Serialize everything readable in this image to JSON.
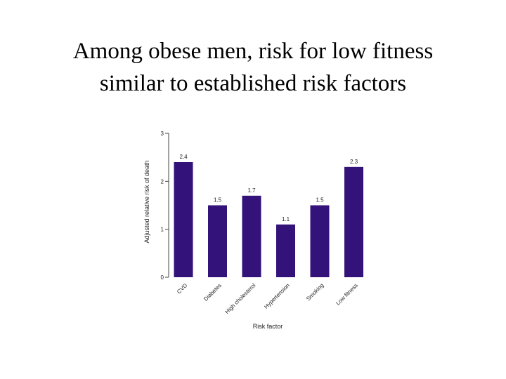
{
  "slide": {
    "title_line1": "Among obese men, risk for low fitness",
    "title_line2": "similar to established risk factors"
  },
  "colors": {
    "bar": "#33127a",
    "axis": "#444444",
    "text": "#222222"
  },
  "chart_data": {
    "type": "bar",
    "categories": [
      "CVD",
      "Diabetes",
      "High cholesterol",
      "Hypertension",
      "Smoking",
      "Low fitness"
    ],
    "values": [
      2.4,
      1.5,
      1.7,
      1.1,
      1.5,
      2.3
    ],
    "value_labels": [
      "2.4",
      "1.5",
      "1.7",
      "1.1",
      "1.5",
      "2.3"
    ],
    "title": "",
    "xlabel": "Risk factor",
    "ylabel": "Adjusted relative risk of death",
    "ylim": [
      0,
      3
    ],
    "yticks": [
      0,
      1,
      2,
      3
    ],
    "grid": false,
    "legend": "none"
  }
}
